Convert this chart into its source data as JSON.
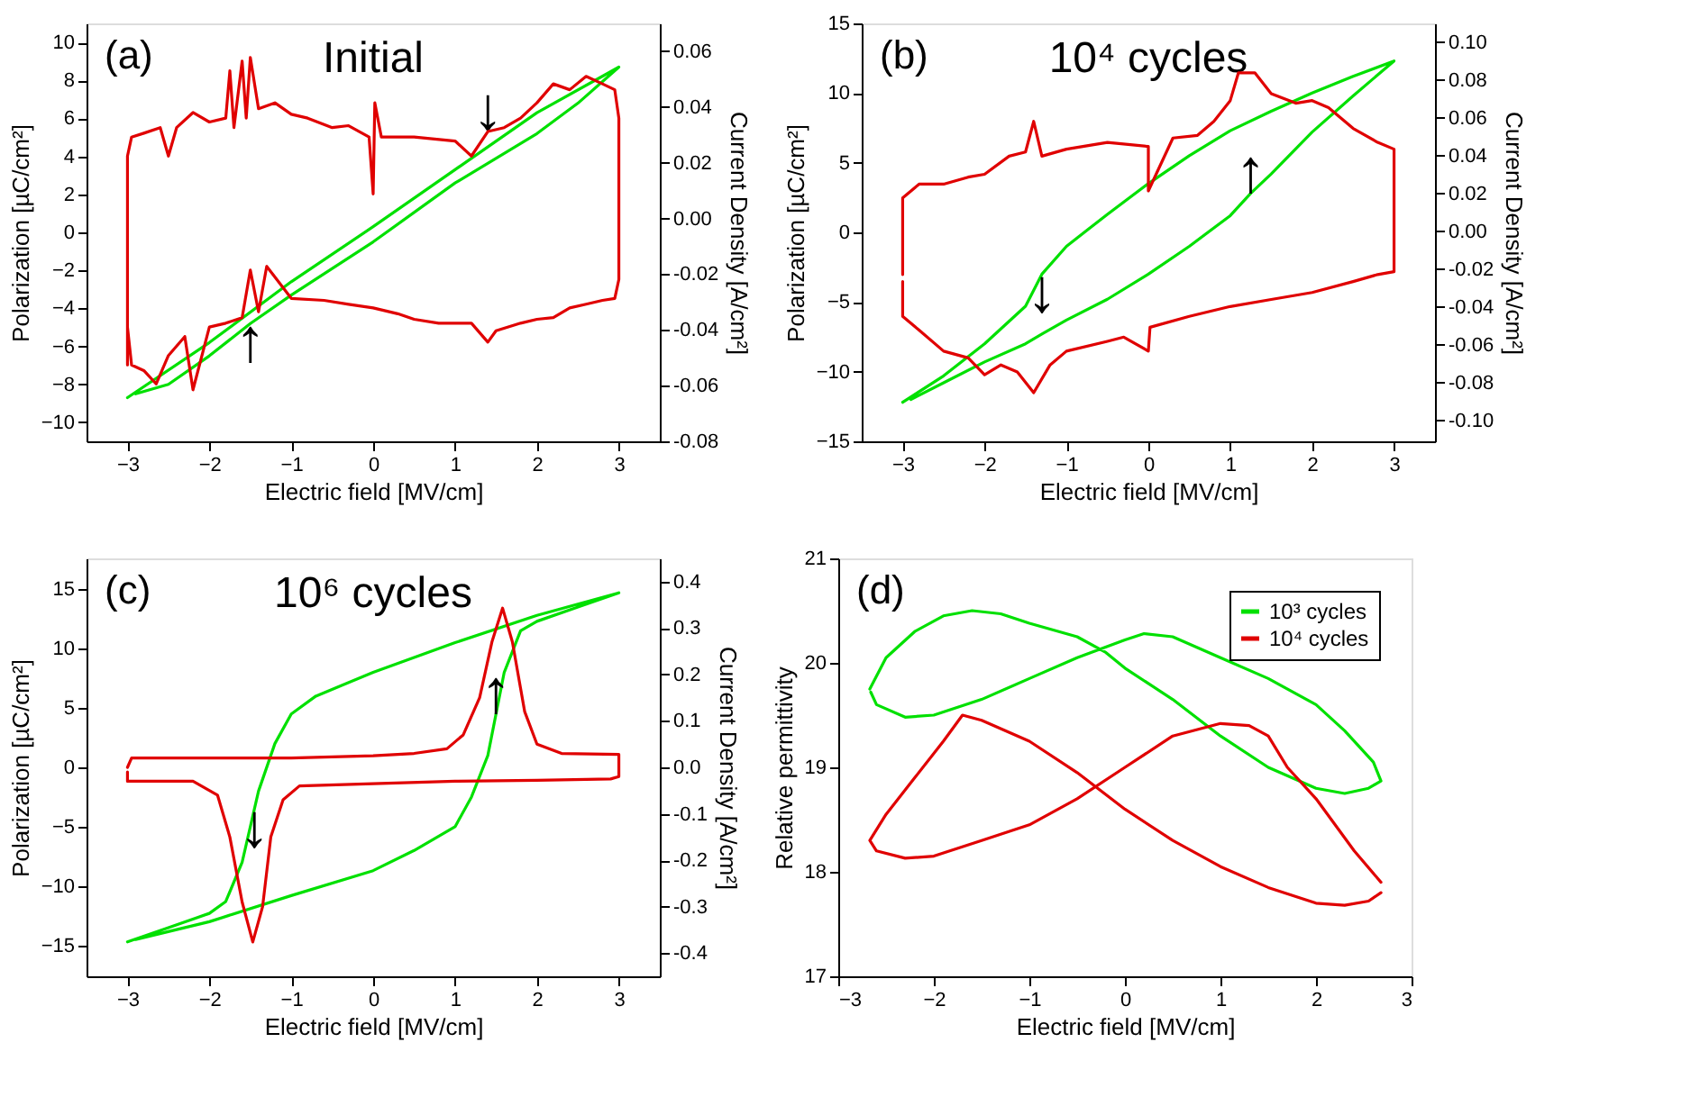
{
  "chart_data": [
    {
      "type": "line",
      "title": "(a)",
      "subtitle": "Initial",
      "xlabel": "Electric field [MV/cm]",
      "ylabel": "Polarization [µC/cm²]",
      "y2label": "Current Density [A/cm²]",
      "xlim": [
        -3.5,
        3.5
      ],
      "xticks": [
        -3,
        -2,
        -1,
        0,
        1,
        2,
        3
      ],
      "ylim": [
        -11,
        11
      ],
      "yticks": [
        -10,
        -8,
        -6,
        -4,
        -2,
        0,
        2,
        4,
        6,
        8,
        10
      ],
      "y2lim": [
        -0.08,
        0.07
      ],
      "y2ticks": [
        {
          "value": -0.08,
          "label": "-0.08"
        },
        {
          "value": -0.06,
          "label": "-0.06"
        },
        {
          "value": -0.04,
          "label": "-0.04"
        },
        {
          "value": -0.02,
          "label": "-0.02"
        },
        {
          "value": 0,
          "label": "0.00"
        },
        {
          "value": 0.02,
          "label": "0.02"
        },
        {
          "value": 0.04,
          "label": "0.04"
        },
        {
          "value": 0.06,
          "label": "0.06"
        }
      ],
      "grid": false,
      "legend": false,
      "annotations": [
        {
          "text": "↓",
          "x": 1.4,
          "y": 5.3
        },
        {
          "text": "↑",
          "x": -1.5,
          "y": -4.8
        }
      ],
      "series": [
        {
          "color": "#00e000",
          "x": [
            -3,
            -2,
            -1,
            0,
            1,
            2,
            3,
            2.5,
            2,
            1,
            0,
            -1,
            -1.5,
            -2,
            -2.5,
            -2.9
          ],
          "values": [
            -8.7,
            -5.8,
            -2.6,
            0.3,
            3.3,
            6.3,
            8.7,
            6.8,
            5.2,
            2.6,
            -0.5,
            -3.3,
            -4.8,
            -6.5,
            -8,
            -8.5
          ]
        },
        {
          "color": "#e00000",
          "axis": "y2",
          "x": [
            -3,
            -3,
            -2.95,
            -2.8,
            -2.6,
            -2.5,
            -2.4,
            -2.2,
            -2.0,
            -1.8,
            -1.75,
            -1.7,
            -1.6,
            -1.55,
            -1.5,
            -1.4,
            -1.2,
            -1.0,
            -0.8,
            -0.5,
            -0.3,
            -0.05,
            0,
            0.02,
            0.1,
            0.5,
            1.0,
            1.2,
            1.4,
            1.6,
            1.8,
            2.0,
            2.2,
            2.4,
            2.6,
            2.8,
            2.95,
            3.0,
            3.0,
            2.95,
            2.8,
            2.6,
            2.4,
            2.2,
            2.0,
            1.8,
            1.5,
            1.4,
            1.2,
            1.0,
            0.8,
            0.5,
            0.3,
            0,
            -0.3,
            -0.6,
            -1.0,
            -1.3,
            -1.4,
            -1.5,
            -1.6,
            -1.8,
            -2.0,
            -2.2,
            -2.3,
            -2.5,
            -2.65,
            -2.8,
            -2.95,
            -3
          ],
          "values": [
            -0.0526,
            0.0224,
            0.0292,
            0.0306,
            0.0326,
            0.0224,
            0.0326,
            0.038,
            0.0346,
            0.036,
            0.053,
            0.0326,
            0.0565,
            0.036,
            0.0578,
            0.0394,
            0.0415,
            0.0374,
            0.036,
            0.0326,
            0.0333,
            0.0292,
            0.0088,
            0.0415,
            0.0292,
            0.0292,
            0.0278,
            0.0224,
            0.0312,
            0.0326,
            0.036,
            0.0415,
            0.0483,
            0.0462,
            0.051,
            0.0483,
            0.0462,
            0.036,
            -0.0219,
            -0.0287,
            -0.0294,
            -0.0308,
            -0.0321,
            -0.0356,
            -0.0362,
            -0.0376,
            -0.0403,
            -0.0444,
            -0.0376,
            -0.0376,
            -0.0376,
            -0.0362,
            -0.0342,
            -0.0321,
            -0.0308,
            -0.0294,
            -0.0287,
            -0.0172,
            -0.0335,
            -0.0185,
            -0.0356,
            -0.0376,
            -0.039,
            -0.0615,
            -0.0424,
            -0.0492,
            -0.0594,
            -0.0546,
            -0.0526,
            -0.039
          ]
        }
      ]
    },
    {
      "type": "line",
      "title": "(b)",
      "subtitle": "10⁴ cycles",
      "xlabel": "Electric field [MV/cm]",
      "ylabel": "Polarization [µC/cm²]",
      "y2label": "Current Density [A/cm²]",
      "xlim": [
        -3.5,
        3.5
      ],
      "xticks": [
        -3,
        -2,
        -1,
        0,
        1,
        2,
        3
      ],
      "ylim": [
        -15,
        15
      ],
      "yticks": [
        -15,
        -10,
        -5,
        0,
        5,
        10,
        15
      ],
      "y2lim": [
        -0.111,
        0.11
      ],
      "y2ticks": [
        {
          "value": -0.1,
          "label": "-0.10"
        },
        {
          "value": -0.08,
          "label": "-0.08"
        },
        {
          "value": -0.06,
          "label": "-0.06"
        },
        {
          "value": -0.04,
          "label": "-0.04"
        },
        {
          "value": -0.02,
          "label": "-0.02"
        },
        {
          "value": 0,
          "label": "0.00"
        },
        {
          "value": 0.02,
          "label": "0.02"
        },
        {
          "value": 0.04,
          "label": "0.04"
        },
        {
          "value": 0.06,
          "label": "0.06"
        },
        {
          "value": 0.08,
          "label": "0.08"
        },
        {
          "value": 0.1,
          "label": "0.10"
        }
      ],
      "grid": false,
      "legend": false,
      "annotations": [
        {
          "text": "↑",
          "x": 1.25,
          "y": 2.8
        },
        {
          "text": "↓",
          "x": -1.3,
          "y": -3.0
        }
      ],
      "series": [
        {
          "color": "#00e000",
          "x": [
            -3,
            -2.5,
            -2,
            -1.5,
            -1.3,
            -1,
            -0.5,
            0,
            0.5,
            1,
            1.5,
            2,
            2.5,
            3,
            2.5,
            2,
            1.5,
            1.25,
            1,
            0.5,
            0,
            -0.5,
            -1,
            -1.3,
            -1.5,
            -2,
            -2.5,
            -2.9
          ],
          "values": [
            -12.2,
            -10.3,
            -8.0,
            -5.3,
            -3.0,
            -1.0,
            1.3,
            3.5,
            5.5,
            7.3,
            8.7,
            10.0,
            11.2,
            12.3,
            9.8,
            7.2,
            4.2,
            2.8,
            1.2,
            -1.0,
            -3.0,
            -4.8,
            -6.3,
            -7.3,
            -8.0,
            -9.3,
            -10.8,
            -12.0
          ]
        },
        {
          "color": "#e00000",
          "axis": "y2",
          "x": [
            -3,
            -3,
            -2.8,
            -2.5,
            -2.2,
            -2,
            -1.7,
            -1.5,
            -1.4,
            -1.3,
            -1,
            -0.5,
            0,
            0,
            0.3,
            0.6,
            0.8,
            1.0,
            1.1,
            1.3,
            1.5,
            1.8,
            2.0,
            2.2,
            2.5,
            2.8,
            3,
            3,
            2.8,
            2.5,
            2,
            1.5,
            1,
            0.5,
            0.02,
            0,
            -0.3,
            -0.5,
            -1,
            -1.2,
            -1.4,
            -1.6,
            -1.8,
            -2,
            -2.2,
            -2.5,
            -2.8,
            -3,
            -3
          ],
          "values": [
            -0.0228,
            0.0177,
            0.025,
            0.025,
            0.0287,
            0.0302,
            0.0398,
            0.042,
            0.0582,
            0.0398,
            0.0435,
            0.0471,
            0.0449,
            0.0214,
            0.0494,
            0.0508,
            0.0582,
            0.0692,
            0.0839,
            0.0839,
            0.0729,
            0.0678,
            0.0692,
            0.0655,
            0.0545,
            0.0471,
            0.0435,
            -0.0213,
            -0.0228,
            -0.0265,
            -0.0323,
            -0.036,
            -0.0397,
            -0.0449,
            -0.0507,
            -0.0633,
            -0.0559,
            -0.0581,
            -0.0633,
            -0.0706,
            -0.0853,
            -0.0743,
            -0.0706,
            -0.0758,
            -0.0669,
            -0.0633,
            -0.0522,
            -0.0449,
            -0.0265
          ]
        }
      ]
    },
    {
      "type": "line",
      "title": "(c)",
      "subtitle": "10⁶ cycles",
      "xlabel": "Electric field [MV/cm]",
      "ylabel": "Polarization [µC/cm²]",
      "y2label": "Current Density [A/cm²]",
      "xlim": [
        -3.5,
        3.5
      ],
      "xticks": [
        -3,
        -2,
        -1,
        0,
        1,
        2,
        3
      ],
      "ylim": [
        -17.6,
        17.6
      ],
      "yticks": [
        -15,
        -10,
        -5,
        0,
        5,
        10,
        15
      ],
      "y2lim": [
        -0.45,
        0.45
      ],
      "y2ticks": [
        {
          "value": -0.4,
          "label": "-0.4"
        },
        {
          "value": -0.3,
          "label": "-0.3"
        },
        {
          "value": -0.2,
          "label": "-0.2"
        },
        {
          "value": -0.1,
          "label": "-0.1"
        },
        {
          "value": 0,
          "label": "0.0"
        },
        0.1,
        0.2,
        0.3,
        0.4
      ],
      "grid": false,
      "legend": false,
      "annotations": [
        {
          "text": "↑",
          "x": 1.5,
          "y": 4.5
        },
        {
          "text": "↓",
          "x": -1.45,
          "y": -3.5
        }
      ],
      "series": [
        {
          "color": "#00e000",
          "x": [
            -3,
            -2.5,
            -2,
            -1.8,
            -1.6,
            -1.4,
            -1.2,
            -1,
            -0.7,
            0,
            1,
            2,
            3,
            2.5,
            2,
            1.8,
            1.6,
            1.4,
            1.2,
            1,
            0.5,
            0,
            -1,
            -2,
            -2.9
          ],
          "values": [
            -14.7,
            -13.5,
            -12.3,
            -11.3,
            -8,
            -2,
            2,
            4.5,
            6,
            8,
            10.5,
            12.8,
            14.7,
            13.5,
            12.3,
            11.5,
            8,
            1,
            -2.5,
            -5,
            -7,
            -8.7,
            -10.8,
            -13,
            -14.5
          ]
        },
        {
          "color": "#e00000",
          "axis": "y2",
          "x": [
            -3,
            -2.95,
            -2,
            -1,
            0,
            0.5,
            0.9,
            1.1,
            1.3,
            1.45,
            1.58,
            1.7,
            1.85,
            2.0,
            2.3,
            3,
            3,
            2.9,
            2,
            1,
            0,
            -0.9,
            -1.1,
            -1.25,
            -1.35,
            -1.47,
            -1.6,
            -1.75,
            -1.9,
            -2.2,
            -3,
            -3
          ],
          "values": [
            0.0,
            0.02,
            0.02,
            0.02,
            0.025,
            0.03,
            0.04,
            0.07,
            0.15,
            0.27,
            0.343,
            0.27,
            0.12,
            0.05,
            0.03,
            0.028,
            -0.02,
            -0.025,
            -0.028,
            -0.03,
            -0.035,
            -0.04,
            -0.07,
            -0.15,
            -0.3,
            -0.376,
            -0.29,
            -0.15,
            -0.06,
            -0.03,
            -0.03,
            -0.01
          ]
        }
      ]
    },
    {
      "type": "line",
      "title": "(d)",
      "xlabel": "Electric field [MV/cm]",
      "ylabel": "Relative permittivity",
      "xlim": [
        -3,
        3
      ],
      "xticks": [
        -3,
        -2,
        -1,
        0,
        1,
        2,
        3
      ],
      "ylim": [
        17,
        21
      ],
      "yticks": [
        17,
        18,
        19,
        20,
        21
      ],
      "grid": false,
      "legend": "top right",
      "series": [
        {
          "name": "10³ cycles",
          "color": "#00e000",
          "x": [
            -2.67,
            -2.5,
            -2.2,
            -1.9,
            -1.6,
            -1.3,
            -1,
            -0.5,
            -0.2,
            0,
            0.5,
            1,
            1.5,
            2,
            2.3,
            2.55,
            2.68,
            2.6,
            2.3,
            2,
            1.5,
            1,
            0.5,
            0.2,
            0,
            -0.5,
            -1,
            -1.5,
            -2,
            -2.3,
            -2.6,
            -2.66
          ],
          "values": [
            19.75,
            20.05,
            20.3,
            20.45,
            20.5,
            20.47,
            20.38,
            20.25,
            20.1,
            19.95,
            19.65,
            19.3,
            19.0,
            18.8,
            18.75,
            18.8,
            18.87,
            19.05,
            19.35,
            19.6,
            19.85,
            20.05,
            20.25,
            20.28,
            20.22,
            20.05,
            19.85,
            19.65,
            19.5,
            19.48,
            19.6,
            19.72
          ]
        },
        {
          "name": "10⁴ cycles",
          "color": "#e00000",
          "x": [
            2.68,
            2.55,
            2.3,
            2,
            1.5,
            1,
            0.5,
            0,
            -0.5,
            -1,
            -1.5,
            -1.7,
            -1.9,
            -2.2,
            -2.5,
            -2.67,
            -2.6,
            -2.3,
            -2,
            -1.5,
            -1,
            -0.5,
            0,
            0.5,
            1,
            1.3,
            1.5,
            1.7,
            2,
            2.4,
            2.68
          ],
          "values": [
            17.8,
            17.72,
            17.68,
            17.7,
            17.85,
            18.05,
            18.3,
            18.6,
            18.95,
            19.25,
            19.45,
            19.5,
            19.25,
            18.9,
            18.55,
            18.3,
            18.2,
            18.13,
            18.15,
            18.3,
            18.45,
            18.7,
            19.0,
            19.3,
            19.42,
            19.4,
            19.3,
            19.0,
            18.7,
            18.2,
            17.9
          ]
        }
      ]
    }
  ]
}
